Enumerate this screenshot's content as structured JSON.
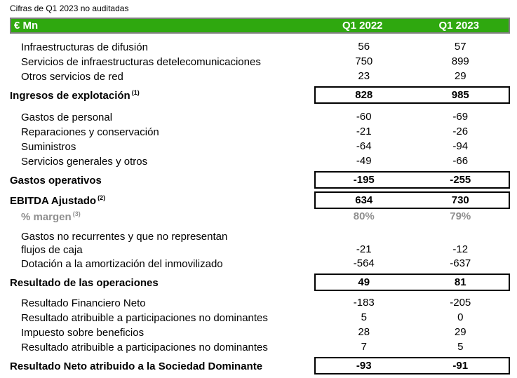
{
  "note": "Cifras de Q1 2023 no auditadas",
  "colors": {
    "header_green": "#2FA80F",
    "header_border_gray": "#808080",
    "muted_text_gray": "#8F8F8F",
    "total_box_border": "#000000"
  },
  "table": {
    "header": {
      "metric": "€ Mn",
      "col_2022": "Q1 2022",
      "col_2023": "Q1 2023"
    },
    "rows": [
      {
        "label": "Infraestructuras de difusión",
        "v2022": "56",
        "v2023": "57"
      },
      {
        "label": "Servicios de infraestructuras detelecomunicaciones",
        "v2022": "750",
        "v2023": "899"
      },
      {
        "label": "Otros servicios de red",
        "v2022": "23",
        "v2023": "29"
      },
      {
        "label": "Ingresos de explotación",
        "sup": "(1)",
        "v2022": "828",
        "v2023": "985"
      },
      {
        "label": "Gastos de personal",
        "v2022": "-60",
        "v2023": "-69"
      },
      {
        "label": "Reparaciones y conservación",
        "v2022": "-21",
        "v2023": "-26"
      },
      {
        "label": "Suministros",
        "v2022": "-64",
        "v2023": "-94"
      },
      {
        "label": "Servicios generales y otros",
        "v2022": "-49",
        "v2023": "-66"
      },
      {
        "label": "Gastos operativos",
        "v2022": "-195",
        "v2023": "-255"
      },
      {
        "label": "EBITDA Ajustado",
        "sup": "(2)",
        "v2022": "634",
        "v2023": "730"
      },
      {
        "label": "% margen",
        "sup": "(3)",
        "v2022": "80%",
        "v2023": "79%"
      },
      {
        "label": "Gastos no recurrentes y que no representan",
        "v2022": "",
        "v2023": ""
      },
      {
        "label": "flujos de caja",
        "v2022": "-21",
        "v2023": "-12"
      },
      {
        "label": "Dotación a la amortización del inmovilizado",
        "v2022": "-564",
        "v2023": "-637"
      },
      {
        "label": "Resultado de las operaciones",
        "v2022": "49",
        "v2023": "81"
      },
      {
        "label": "Resultado Financiero Neto",
        "v2022": "-183",
        "v2023": "-205"
      },
      {
        "label": "Resultado atribuible a participaciones no dominantes",
        "v2022": "5",
        "v2023": "0"
      },
      {
        "label": "Impuesto sobre beneficios",
        "v2022": "28",
        "v2023": "29"
      },
      {
        "label": "Resultado atribuible a participaciones no dominantes",
        "v2022": "7",
        "v2023": "5"
      },
      {
        "label": "Resultado Neto atribuido a la Sociedad Dominante",
        "v2022": "-93",
        "v2023": "-91"
      }
    ]
  }
}
